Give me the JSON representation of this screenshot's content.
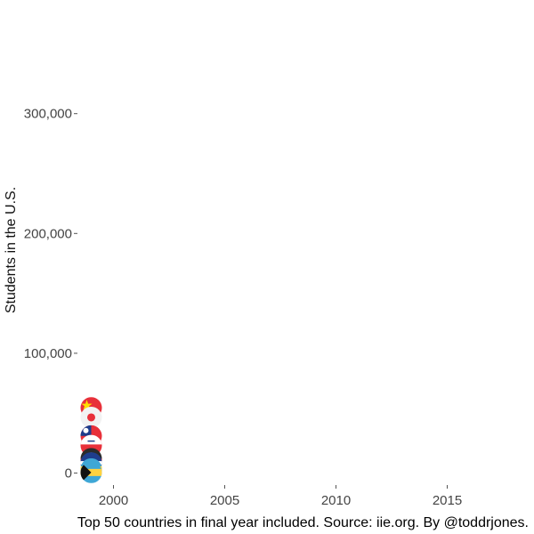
{
  "chart_data": {
    "type": "scatter",
    "ylabel": "Students in the U.S.",
    "caption": "Top 50 countries in final year included. Source: iie.org. By @toddrjones.",
    "xlim": [
      1998.5,
      2018.5
    ],
    "ylim": [
      -10000,
      380000
    ],
    "x_ticks": [
      2000,
      2005,
      2010,
      2015
    ],
    "x_tick_labels": [
      "2000",
      "2005",
      "2010",
      "2015"
    ],
    "y_ticks": [
      0,
      100000,
      200000,
      300000
    ],
    "y_tick_labels": [
      "0",
      "100,000",
      "200,000",
      "300,000"
    ],
    "grid": false,
    "marker": "country-flag",
    "points": [
      {
        "x": 1999,
        "y": 54500,
        "flag": "china-flag",
        "colors": [
          "#e8303a",
          "#ffde00"
        ]
      },
      {
        "x": 1999,
        "y": 46500,
        "flag": "japan-flag",
        "colors": [
          "#f2f2f2",
          "#e8303a"
        ]
      },
      {
        "x": 1999,
        "y": 31000,
        "flag": "taiwan-flag",
        "colors": [
          "#e8303a",
          "#1e3d8c"
        ]
      },
      {
        "x": 1999,
        "y": 23000,
        "flag": "south-korea-flag",
        "colors": [
          "#e8303a",
          "#1e3d8c"
        ]
      },
      {
        "x": 1999,
        "y": 12000,
        "flag": "flag-dark-round",
        "colors": [
          "#2b2b2b",
          "#e8303a"
        ]
      },
      {
        "x": 1999,
        "y": 8500,
        "flag": "flag-navy-round",
        "colors": [
          "#1e3d8c",
          "#ffffff"
        ]
      },
      {
        "x": 1999,
        "y": 3500,
        "flag": "flag-teal-yellow",
        "colors": [
          "#3fa7d6",
          "#ffd23f"
        ]
      },
      {
        "x": 1999,
        "y": 500,
        "flag": "bahamas-flag",
        "colors": [
          "#3fa7d6",
          "#ffd23f"
        ]
      }
    ]
  }
}
